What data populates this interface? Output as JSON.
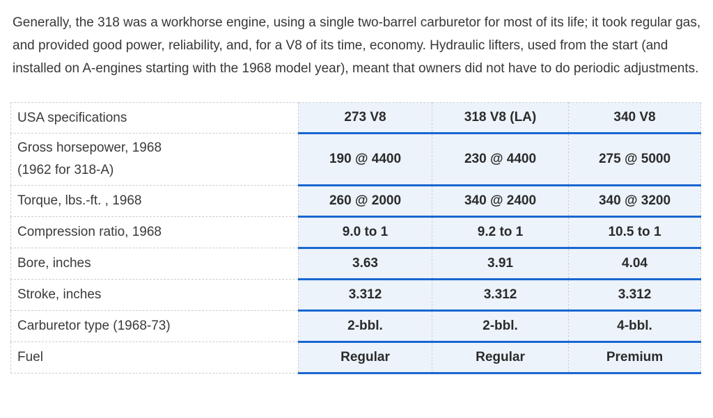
{
  "paragraph": {
    "text": "Generally, the 318 was a workhorse engine, using a single two-barrel carburetor for most of its life; it took regular gas, and provided good power, reliability, and, for a V8 of its time, economy. Hydraulic lifters, used from the start (and installed on A-engines starting with the 1968 model year), meant that owners did not have to do periodic adjustments."
  },
  "table": {
    "header": {
      "label": "USA specifications",
      "columns": [
        "273 V8",
        "318 V8 (LA)",
        "340 V8"
      ]
    },
    "rows": [
      {
        "label_lines": [
          "Gross horsepower, 1968",
          "(1962 for 318-A)"
        ],
        "values": [
          "190 @ 4400",
          "230 @ 4400",
          "275 @ 5000"
        ]
      },
      {
        "label_lines": [
          "Torque, lbs.-ft. , 1968"
        ],
        "values": [
          "260 @ 2000",
          "340 @ 2400",
          "340 @ 3200"
        ]
      },
      {
        "label_lines": [
          "Compression ratio, 1968"
        ],
        "values": [
          "9.0 to 1",
          "9.2 to 1",
          "10.5 to 1"
        ]
      },
      {
        "label_lines": [
          "Bore, inches"
        ],
        "values": [
          "3.63",
          "3.91",
          "4.04"
        ]
      },
      {
        "label_lines": [
          "Stroke, inches"
        ],
        "values": [
          "3.312",
          "3.312",
          "3.312"
        ]
      },
      {
        "label_lines": [
          "Carburetor type (1968-73)"
        ],
        "values": [
          "2-bbl.",
          "2-bbl.",
          "4-bbl."
        ]
      },
      {
        "label_lines": [
          "Fuel"
        ],
        "values": [
          "Regular",
          "Regular",
          "Premium"
        ]
      }
    ],
    "colors": {
      "accent_blue": "#1966d1",
      "data_cell_background": "#ecf3fb",
      "grid_border": "#c9cdd2",
      "body_text": "#373737"
    }
  }
}
